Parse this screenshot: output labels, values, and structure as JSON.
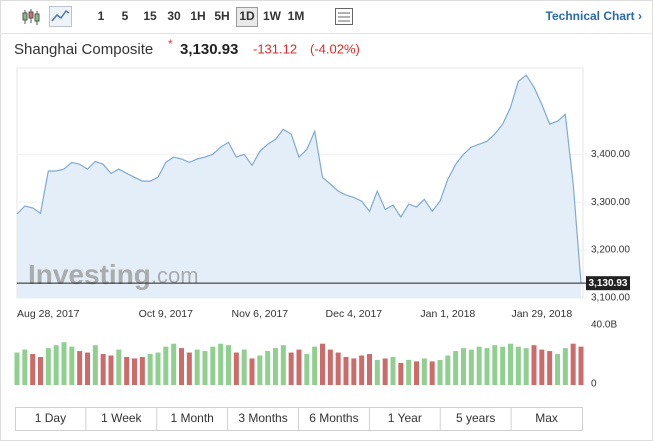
{
  "toolbar": {
    "intervals": [
      "1",
      "5",
      "15",
      "30",
      "1H",
      "5H",
      "1D",
      "1W",
      "1M"
    ],
    "selected": "1D",
    "link": "Technical Chart ›"
  },
  "header": {
    "name": "Shanghai Composite",
    "marker": "*",
    "price": "3,130.93",
    "change": "-131.12",
    "change_percent": "(-4.02%)"
  },
  "watermark": {
    "brand": "Investing",
    "suffix": ".com"
  },
  "ranges": [
    "1 Day",
    "1 Week",
    "1 Month",
    "3 Months",
    "6 Months",
    "1 Year",
    "5 years",
    "Max"
  ],
  "chart_data": [
    {
      "type": "area",
      "color": "#7faad3",
      "fill": "#e4eef8",
      "categories": [
        null,
        "Aug 28, 2017",
        null,
        null,
        null,
        null,
        null,
        null,
        null,
        null,
        null,
        null,
        null,
        null,
        null,
        null,
        null,
        null,
        null,
        "Oct 9, 2017",
        null,
        null,
        null,
        null,
        null,
        null,
        null,
        null,
        null,
        null,
        null,
        "Nov 6, 2017",
        null,
        null,
        null,
        null,
        null,
        null,
        null,
        null,
        null,
        null,
        null,
        "Dec 4, 2017",
        null,
        null,
        null,
        null,
        null,
        null,
        null,
        null,
        null,
        null,
        null,
        "Jan 1, 2018",
        null,
        null,
        null,
        null,
        null,
        null,
        null,
        null,
        null,
        null,
        null,
        "Jan 29, 2018",
        null,
        null,
        null,
        null,
        null
      ],
      "values": [
        3275,
        3292,
        3288,
        3277,
        3365,
        3365,
        3369,
        3383,
        3379,
        3369,
        3385,
        3379,
        3360,
        3369,
        3360,
        3352,
        3344,
        3344,
        3352,
        3383,
        3394,
        3390,
        3383,
        3390,
        3394,
        3400,
        3415,
        3425,
        3394,
        3400,
        3377,
        3406,
        3421,
        3431,
        3452,
        3442,
        3394,
        3410,
        3448,
        3352,
        3338,
        3323,
        3315,
        3310,
        3302,
        3281,
        3323,
        3285,
        3294,
        3269,
        3296,
        3290,
        3306,
        3281,
        3302,
        3348,
        3379,
        3400,
        3415,
        3421,
        3427,
        3442,
        3463,
        3498,
        3552,
        3565,
        3540,
        3504,
        3463,
        3469,
        3483,
        3338,
        3130.93
      ],
      "ylim": [
        3100,
        3580
      ],
      "yticks": [
        {
          "value": 3100,
          "label": "3,100.00"
        },
        {
          "value": 3200,
          "label": "3,200.00"
        },
        {
          "value": 3300,
          "label": "3,300.00"
        },
        {
          "value": 3400,
          "label": "3,400.00"
        }
      ]
    },
    {
      "type": "bar",
      "values": [
        22,
        24,
        21,
        19,
        25,
        27,
        29,
        26,
        23,
        22,
        27,
        21,
        20,
        24,
        19,
        18,
        19,
        21,
        22,
        26,
        28,
        25,
        22,
        24,
        23,
        26,
        28,
        27,
        22,
        24,
        18,
        20,
        23,
        25,
        27,
        22,
        24,
        21,
        26,
        28,
        24,
        22,
        19,
        18,
        20,
        21,
        17,
        18,
        19,
        15,
        17,
        16,
        18,
        16,
        17,
        20,
        23,
        25,
        24,
        26,
        25,
        27,
        26,
        28,
        26,
        25,
        27,
        24,
        23,
        21,
        25,
        28,
        26
      ],
      "colors": [
        "#8fcf8f",
        "#8fcf8f",
        "#cd6a6a",
        "#cd6a6a",
        "#8fcf8f",
        "#8fcf8f",
        "#8fcf8f",
        "#8fcf8f",
        "#cd6a6a",
        "#cd6a6a",
        "#8fcf8f",
        "#cd6a6a",
        "#cd6a6a",
        "#8fcf8f",
        "#cd6a6a",
        "#cd6a6a",
        "#cd6a6a",
        "#8fcf8f",
        "#8fcf8f",
        "#8fcf8f",
        "#8fcf8f",
        "#cd6a6a",
        "#cd6a6a",
        "#8fcf8f",
        "#8fcf8f",
        "#8fcf8f",
        "#8fcf8f",
        "#8fcf8f",
        "#cd6a6a",
        "#8fcf8f",
        "#cd6a6a",
        "#8fcf8f",
        "#8fcf8f",
        "#8fcf8f",
        "#8fcf8f",
        "#cd6a6a",
        "#cd6a6a",
        "#8fcf8f",
        "#8fcf8f",
        "#cd6a6a",
        "#cd6a6a",
        "#cd6a6a",
        "#cd6a6a",
        "#cd6a6a",
        "#cd6a6a",
        "#cd6a6a",
        "#8fcf8f",
        "#cd6a6a",
        "#8fcf8f",
        "#cd6a6a",
        "#8fcf8f",
        "#cd6a6a",
        "#8fcf8f",
        "#cd6a6a",
        "#8fcf8f",
        "#8fcf8f",
        "#8fcf8f",
        "#8fcf8f",
        "#8fcf8f",
        "#8fcf8f",
        "#8fcf8f",
        "#8fcf8f",
        "#8fcf8f",
        "#8fcf8f",
        "#8fcf8f",
        "#8fcf8f",
        "#cd6a6a",
        "#cd6a6a",
        "#cd6a6a",
        "#8fcf8f",
        "#8fcf8f",
        "#cd6a6a",
        "#cd6a6a"
      ],
      "ylim": [
        0,
        40
      ],
      "yticks": [
        0,
        {
          "value": 40,
          "label": "40.0B"
        }
      ]
    }
  ]
}
